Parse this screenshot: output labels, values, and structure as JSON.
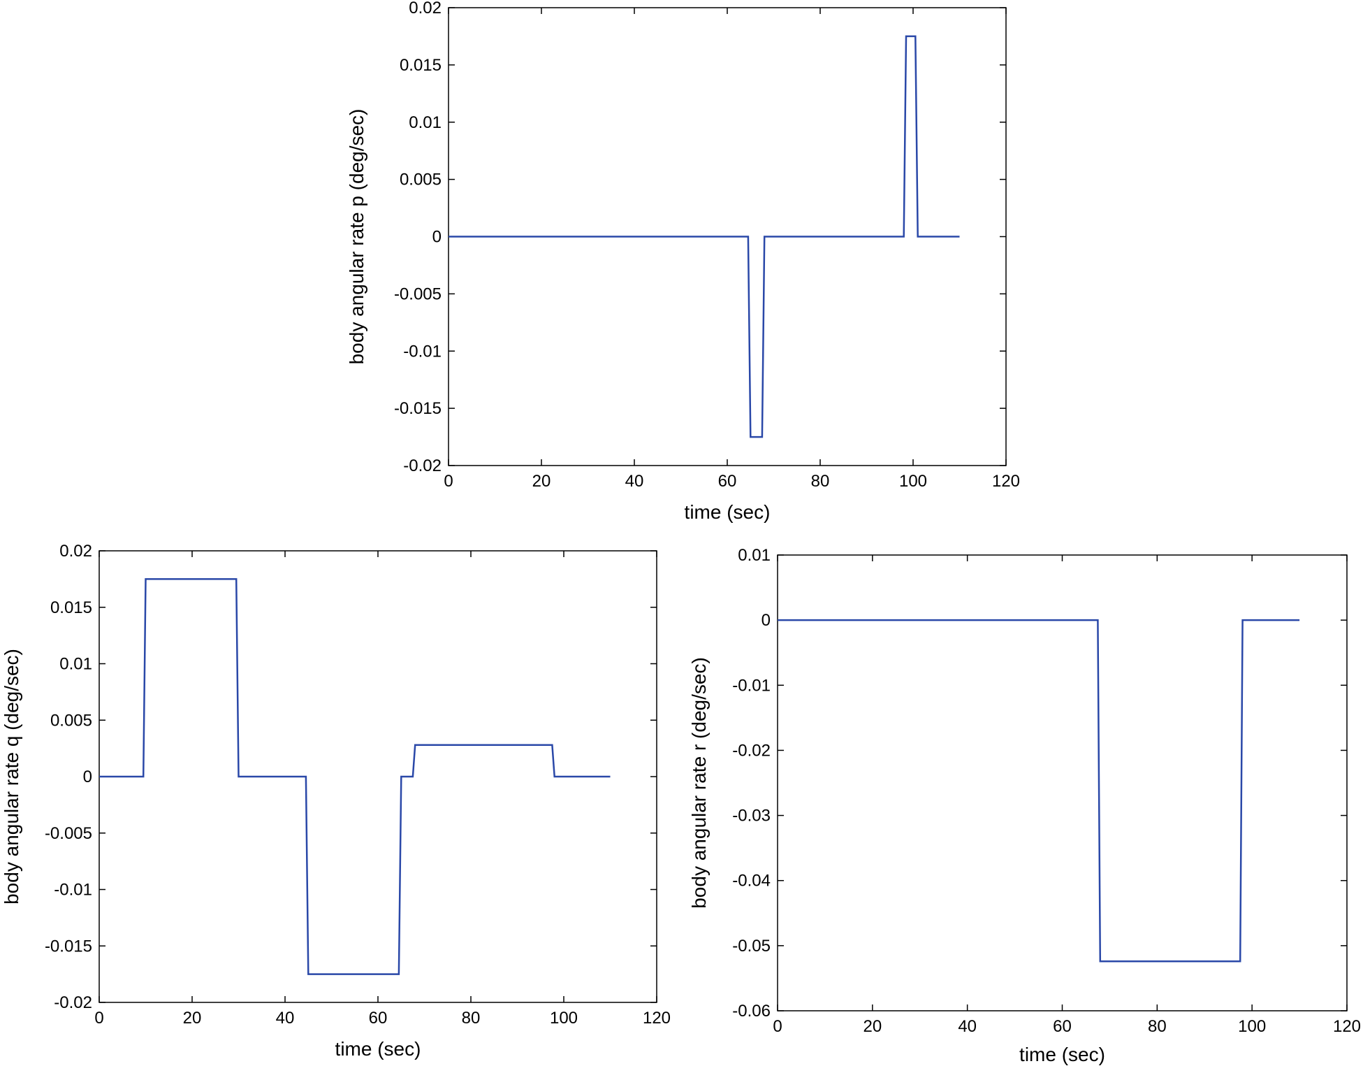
{
  "chart_data": [
    {
      "id": "p",
      "type": "line",
      "title": "",
      "xlabel": "time (sec)",
      "ylabel": "body angular rate p (deg/sec)",
      "xlim": [
        0,
        120
      ],
      "ylim": [
        -0.02,
        0.02
      ],
      "xticks": [
        0,
        20,
        40,
        60,
        80,
        100,
        120
      ],
      "xtick_labels": [
        "0",
        "20",
        "40",
        "60",
        "80",
        "100",
        "120"
      ],
      "yticks": [
        0.02,
        0.015,
        0.01,
        0.005,
        0,
        -0.005,
        -0.01,
        -0.015,
        -0.02
      ],
      "ytick_labels": [
        "0.02",
        "0.015",
        "0.01",
        "0.005",
        "0",
        "-0.005",
        "-0.01",
        "-0.015",
        "-0.02"
      ],
      "grid": false,
      "color": "#2a48a8",
      "series": [
        {
          "x": [
            0,
            64.5,
            65,
            67.5,
            68,
            98,
            98.5,
            100.5,
            101,
            110
          ],
          "y": [
            0,
            0,
            -0.0175,
            -0.0175,
            0,
            0,
            0.0175,
            0.0175,
            0,
            0
          ]
        }
      ]
    },
    {
      "id": "q",
      "type": "line",
      "title": "",
      "xlabel": "time (sec)",
      "ylabel": "body angular rate q (deg/sec)",
      "xlim": [
        0,
        120
      ],
      "ylim": [
        -0.02,
        0.02
      ],
      "xticks": [
        0,
        20,
        40,
        60,
        80,
        100,
        120
      ],
      "xtick_labels": [
        "0",
        "20",
        "40",
        "60",
        "80",
        "100",
        "120"
      ],
      "yticks": [
        0.02,
        0.015,
        0.01,
        0.005,
        0,
        -0.005,
        -0.01,
        -0.015,
        -0.02
      ],
      "ytick_labels": [
        "0.02",
        "0.015",
        "0.01",
        "0.005",
        "0",
        "-0.005",
        "-0.01",
        "-0.015",
        "-0.02"
      ],
      "grid": false,
      "color": "#2a48a8",
      "series": [
        {
          "x": [
            0,
            9.5,
            10,
            29.5,
            30,
            44.5,
            45,
            64.5,
            65,
            67.5,
            68,
            97.5,
            98,
            110
          ],
          "y": [
            0,
            0,
            0.0175,
            0.0175,
            0,
            0,
            -0.0175,
            -0.0175,
            0,
            0,
            0.0028,
            0.0028,
            0,
            0
          ]
        }
      ]
    },
    {
      "id": "r",
      "type": "line",
      "title": "",
      "xlabel": "time (sec)",
      "ylabel": "body angular rate r (deg/sec)",
      "xlim": [
        0,
        120
      ],
      "ylim": [
        -0.06,
        0.01
      ],
      "xticks": [
        0,
        20,
        40,
        60,
        80,
        100,
        120
      ],
      "xtick_labels": [
        "0",
        "20",
        "40",
        "60",
        "80",
        "100",
        "120"
      ],
      "yticks": [
        0.01,
        0,
        -0.01,
        -0.02,
        -0.03,
        -0.04,
        -0.05,
        -0.06
      ],
      "ytick_labels": [
        "0.01",
        "0",
        "-0.01",
        "-0.02",
        "-0.03",
        "-0.04",
        "-0.05",
        "-0.06"
      ],
      "grid": false,
      "color": "#2a48a8",
      "series": [
        {
          "x": [
            0,
            67.5,
            68,
            97.5,
            98,
            110
          ],
          "y": [
            0,
            0,
            -0.0524,
            -0.0524,
            0,
            0
          ]
        }
      ]
    }
  ]
}
